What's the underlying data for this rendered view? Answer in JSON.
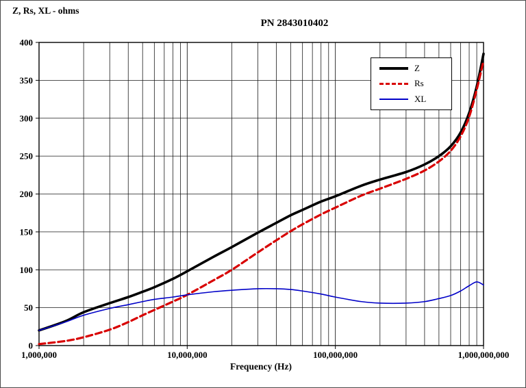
{
  "chart_data": {
    "type": "line",
    "title": "PN 2843010402",
    "xlabel": "Frequency (Hz)",
    "ylabel": "Z, Rs, XL - ohms",
    "x_scale": "log",
    "xlim": [
      1000000,
      1000000000
    ],
    "ylim": [
      0,
      400
    ],
    "y_ticks": [
      0,
      50,
      100,
      150,
      200,
      250,
      300,
      350,
      400
    ],
    "x_tick_values": [
      1000000,
      10000000,
      100000000,
      1000000000
    ],
    "x_tick_labels": [
      "1,000,000",
      "10,000,000",
      "100,000,000",
      "1,000,000,000"
    ],
    "grid": true,
    "legend_position": "upper-right-inside",
    "series": [
      {
        "name": "Z",
        "color": "#000000",
        "width": 3.6,
        "dash": null,
        "points": [
          [
            1000000,
            20
          ],
          [
            1500000,
            32
          ],
          [
            2000000,
            44
          ],
          [
            3000000,
            56
          ],
          [
            4000000,
            64
          ],
          [
            5000000,
            71
          ],
          [
            6000000,
            77
          ],
          [
            8000000,
            88
          ],
          [
            10000000,
            98
          ],
          [
            15000000,
            117
          ],
          [
            20000000,
            130
          ],
          [
            30000000,
            149
          ],
          [
            40000000,
            162
          ],
          [
            50000000,
            172
          ],
          [
            60000000,
            179
          ],
          [
            80000000,
            190
          ],
          [
            100000000,
            197
          ],
          [
            150000000,
            211
          ],
          [
            200000000,
            219
          ],
          [
            300000000,
            229
          ],
          [
            400000000,
            239
          ],
          [
            500000000,
            250
          ],
          [
            600000000,
            263
          ],
          [
            700000000,
            281
          ],
          [
            800000000,
            307
          ],
          [
            900000000,
            342
          ],
          [
            1000000000,
            385
          ]
        ]
      },
      {
        "name": "Rs",
        "color": "#d80000",
        "width": 3.2,
        "dash": [
          9,
          5
        ],
        "points": [
          [
            1000000,
            2
          ],
          [
            1500000,
            6
          ],
          [
            2000000,
            11
          ],
          [
            3000000,
            21
          ],
          [
            4000000,
            31
          ],
          [
            5000000,
            40
          ],
          [
            6000000,
            47
          ],
          [
            8000000,
            58
          ],
          [
            10000000,
            67
          ],
          [
            15000000,
            86
          ],
          [
            20000000,
            100
          ],
          [
            30000000,
            123
          ],
          [
            40000000,
            139
          ],
          [
            50000000,
            151
          ],
          [
            60000000,
            160
          ],
          [
            80000000,
            173
          ],
          [
            100000000,
            182
          ],
          [
            150000000,
            198
          ],
          [
            200000000,
            207
          ],
          [
            300000000,
            220
          ],
          [
            400000000,
            231
          ],
          [
            500000000,
            243
          ],
          [
            600000000,
            257
          ],
          [
            700000000,
            276
          ],
          [
            800000000,
            302
          ],
          [
            900000000,
            338
          ],
          [
            1000000000,
            376
          ]
        ]
      },
      {
        "name": "XL",
        "color": "#0000c8",
        "width": 1.6,
        "dash": null,
        "points": [
          [
            1000000,
            20
          ],
          [
            1500000,
            31
          ],
          [
            2000000,
            40
          ],
          [
            3000000,
            49
          ],
          [
            4000000,
            54
          ],
          [
            5000000,
            58
          ],
          [
            6000000,
            61
          ],
          [
            8000000,
            64
          ],
          [
            10000000,
            67
          ],
          [
            15000000,
            71
          ],
          [
            20000000,
            73
          ],
          [
            30000000,
            75
          ],
          [
            40000000,
            75
          ],
          [
            50000000,
            74
          ],
          [
            60000000,
            72
          ],
          [
            80000000,
            68
          ],
          [
            100000000,
            64
          ],
          [
            150000000,
            58
          ],
          [
            200000000,
            56
          ],
          [
            300000000,
            56
          ],
          [
            400000000,
            58
          ],
          [
            500000000,
            62
          ],
          [
            600000000,
            66
          ],
          [
            700000000,
            72
          ],
          [
            800000000,
            79
          ],
          [
            900000000,
            84
          ],
          [
            1000000000,
            80
          ]
        ]
      }
    ]
  }
}
